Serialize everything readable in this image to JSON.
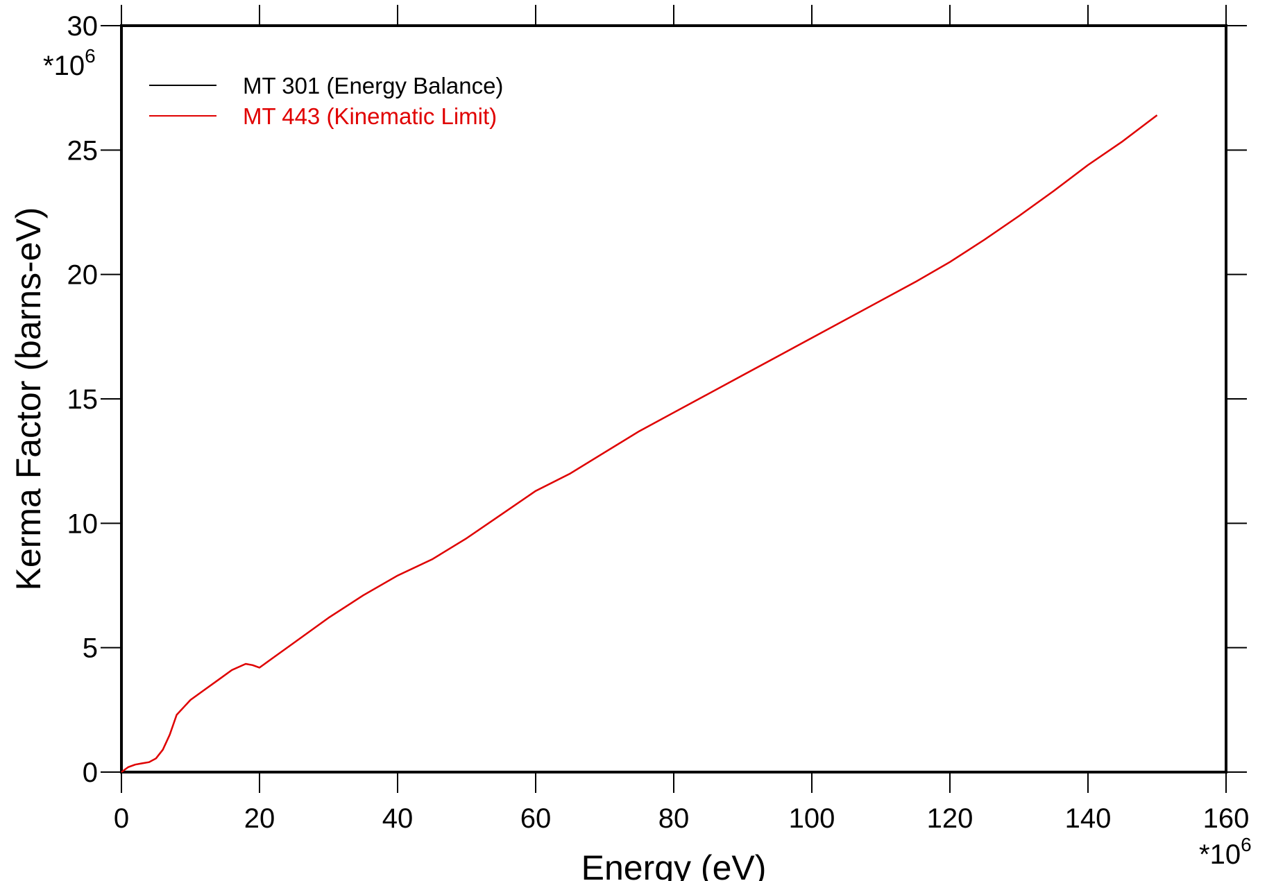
{
  "chart_data": {
    "type": "line",
    "xlabel": "Energy (eV)",
    "ylabel": "Kerma Factor (barns-eV)",
    "x_multiplier_label": "*10",
    "x_multiplier_exp": "6",
    "y_multiplier_label": "*10",
    "y_multiplier_exp": "6",
    "xlim": [
      0,
      160
    ],
    "ylim": [
      0,
      30
    ],
    "x_ticks": [
      0,
      20,
      40,
      60,
      80,
      100,
      120,
      140,
      160
    ],
    "y_ticks": [
      0,
      5,
      10,
      15,
      20,
      25,
      30
    ],
    "x_tick_labels": [
      "0",
      "20",
      "40",
      "60",
      "80",
      "100",
      "120",
      "140",
      "160"
    ],
    "y_tick_labels": [
      "0",
      "5",
      "10",
      "15",
      "20",
      "25",
      "30"
    ],
    "grid": false,
    "legend_position": "top-left",
    "colors": {
      "series1": "#000000",
      "series2": "#e00000"
    },
    "series": [
      {
        "name": "MT 301 (Energy Balance)",
        "color": "#000000",
        "x": [
          0,
          1,
          2,
          3,
          4,
          5,
          6,
          7,
          8,
          9,
          10,
          12,
          14,
          16,
          18,
          19,
          20,
          22,
          25,
          30,
          35,
          40,
          45,
          50,
          55,
          60,
          65,
          70,
          75,
          80,
          85,
          90,
          95,
          100,
          105,
          110,
          115,
          120,
          125,
          130,
          135,
          140,
          145,
          150
        ],
        "y": [
          0.0,
          0.2,
          0.3,
          0.35,
          0.4,
          0.55,
          0.9,
          1.5,
          2.3,
          2.6,
          2.9,
          3.3,
          3.7,
          4.1,
          4.35,
          4.3,
          4.2,
          4.6,
          5.2,
          6.2,
          7.1,
          7.9,
          8.55,
          9.4,
          10.35,
          11.3,
          12.0,
          12.85,
          13.7,
          14.45,
          15.2,
          15.95,
          16.7,
          17.45,
          18.2,
          18.95,
          19.7,
          20.5,
          21.4,
          22.35,
          23.35,
          24.4,
          25.35,
          26.4
        ]
      },
      {
        "name": "MT 443 (Kinematic Limit)",
        "color": "#e00000",
        "x": [
          0,
          1,
          2,
          3,
          4,
          5,
          6,
          7,
          8,
          9,
          10,
          12,
          14,
          16,
          18,
          19,
          20,
          22,
          25,
          30,
          35,
          40,
          45,
          50,
          55,
          60,
          65,
          70,
          75,
          80,
          85,
          90,
          95,
          100,
          105,
          110,
          115,
          120,
          125,
          130,
          135,
          140,
          145,
          150
        ],
        "y": [
          0.0,
          0.2,
          0.3,
          0.35,
          0.4,
          0.55,
          0.9,
          1.5,
          2.3,
          2.6,
          2.9,
          3.3,
          3.7,
          4.1,
          4.35,
          4.3,
          4.2,
          4.6,
          5.2,
          6.2,
          7.1,
          7.9,
          8.55,
          9.4,
          10.35,
          11.3,
          12.0,
          12.85,
          13.7,
          14.45,
          15.2,
          15.95,
          16.7,
          17.45,
          18.2,
          18.95,
          19.7,
          20.5,
          21.4,
          22.35,
          23.35,
          24.4,
          25.35,
          26.4
        ]
      }
    ]
  }
}
